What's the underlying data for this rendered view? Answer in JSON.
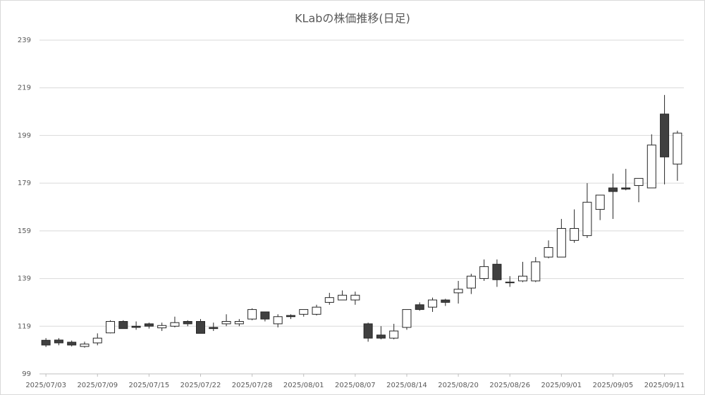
{
  "chart_data": {
    "type": "candlestick",
    "title": "KLabの株価推移(日足)",
    "categories": [
      "2025/07/03",
      null,
      null,
      null,
      "2025/07/09",
      null,
      null,
      null,
      "2025/07/15",
      null,
      null,
      null,
      "2025/07/22",
      null,
      null,
      null,
      "2025/07/28",
      null,
      null,
      null,
      "2025/08/01",
      null,
      null,
      null,
      "2025/08/07",
      null,
      null,
      null,
      "2025/08/14",
      null,
      null,
      null,
      "2025/08/20",
      null,
      null,
      null,
      "2025/08/26",
      null,
      null,
      null,
      "2025/09/01",
      null,
      null,
      null,
      "2025/09/05",
      null,
      null,
      null,
      "2025/09/11",
      null
    ],
    "open": [
      113.1,
      113.2,
      112.3,
      110.5,
      112,
      116.2,
      121,
      119,
      120,
      118.3,
      119,
      121,
      121,
      118.5,
      120,
      120,
      122,
      125,
      120,
      123.5,
      124,
      124,
      129,
      130,
      130,
      120,
      115.3,
      114,
      118.5,
      128,
      127,
      130,
      133,
      135,
      139,
      145,
      137.5,
      138,
      138,
      148,
      148,
      155,
      157,
      168,
      177,
      177,
      178,
      177,
      208,
      187
    ],
    "high": [
      114,
      114,
      113,
      112.5,
      116,
      121.5,
      121.5,
      121,
      120.5,
      120.5,
      123,
      121.5,
      122,
      120.5,
      124,
      122,
      126.5,
      125,
      124,
      124,
      126,
      128,
      133,
      134,
      133.5,
      120.5,
      119,
      120,
      126,
      129,
      131,
      130.5,
      138,
      141,
      147,
      147,
      140,
      146,
      148,
      155,
      164,
      168,
      179,
      174,
      183,
      185,
      181,
      199.5,
      216,
      201
    ],
    "low": [
      110.3,
      111,
      110.5,
      110,
      111,
      116,
      118,
      117.5,
      118,
      117,
      118.5,
      119,
      116,
      117,
      119,
      119,
      121.5,
      121,
      118.5,
      122,
      123,
      123.5,
      128,
      130,
      128,
      112.5,
      113.5,
      113.5,
      117.5,
      125.5,
      125,
      127.5,
      128.5,
      132.5,
      138,
      135.5,
      135.5,
      137.5,
      137.5,
      147.5,
      148,
      154,
      156,
      163.5,
      164,
      176,
      171,
      177,
      178.5,
      180
    ],
    "close": [
      111.1,
      112,
      111.1,
      111.5,
      114,
      121,
      118,
      118.5,
      119,
      119.3,
      120.5,
      120,
      116,
      118,
      121,
      121,
      126,
      122,
      123,
      123,
      126,
      127,
      131,
      132,
      132,
      114,
      114,
      117,
      126,
      126,
      130,
      129,
      134.5,
      140,
      144,
      138.5,
      137.2,
      140,
      146,
      152,
      160,
      160,
      171,
      174,
      175.5,
      176.5,
      181,
      195,
      190,
      200
    ],
    "up_color": "#ffffff",
    "down_color": "#404040",
    "edge_color": "#262626",
    "ylim": [
      99,
      239
    ],
    "yticks": [
      99,
      119,
      139,
      159,
      179,
      199,
      219,
      239
    ],
    "grid": true
  }
}
